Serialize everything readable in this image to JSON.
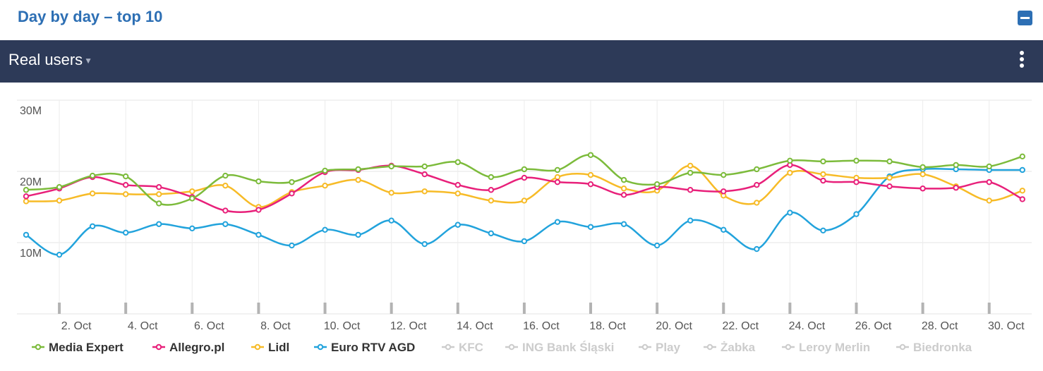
{
  "header": {
    "title": "Day by day – top 10"
  },
  "toolbar": {
    "metric_label": "Real users"
  },
  "chart_data": {
    "type": "line",
    "title": "Day by day – top 10",
    "ylabel": "Real users",
    "ylim": [
      0,
      30000000
    ],
    "ytick_values": [
      10000000,
      20000000,
      30000000
    ],
    "ytick_labels": [
      "10M",
      "20M",
      "30M"
    ],
    "x": [
      1,
      2,
      3,
      4,
      5,
      6,
      7,
      8,
      9,
      10,
      11,
      12,
      13,
      14,
      15,
      16,
      17,
      18,
      19,
      20,
      21,
      22,
      23,
      24,
      25,
      26,
      27,
      28,
      29,
      30,
      31
    ],
    "xtick_days": [
      2,
      4,
      6,
      8,
      10,
      12,
      14,
      16,
      18,
      20,
      22,
      24,
      26,
      28,
      30
    ],
    "xtick_labels": [
      "2. Oct",
      "4. Oct",
      "6. Oct",
      "8. Oct",
      "10. Oct",
      "12. Oct",
      "14. Oct",
      "16. Oct",
      "18. Oct",
      "20. Oct",
      "22. Oct",
      "24. Oct",
      "26. Oct",
      "28. Oct",
      "30. Oct"
    ],
    "series": [
      {
        "name": "Media Expert",
        "color": "#7cbb3b",
        "visible": true,
        "values": [
          17.4,
          17.8,
          19.4,
          19.3,
          15.5,
          16.2,
          19.4,
          18.6,
          18.5,
          20.1,
          20.3,
          20.7,
          20.7,
          21.3,
          19.2,
          20.3,
          20.2,
          22.3,
          18.8,
          18.2,
          19.8,
          19.5,
          20.3,
          21.5,
          21.4,
          21.5,
          21.4,
          20.6,
          20.9,
          20.7,
          22.1
        ]
      },
      {
        "name": "Allegro.pl",
        "color": "#e8207a",
        "visible": true,
        "values": [
          16.5,
          17.6,
          19.2,
          18.1,
          17.8,
          16.4,
          14.5,
          14.6,
          16.9,
          19.9,
          20.2,
          20.8,
          19.6,
          18.1,
          17.4,
          19.1,
          18.5,
          18.2,
          16.7,
          17.8,
          17.4,
          17.2,
          18.1,
          20.9,
          18.7,
          18.5,
          17.9,
          17.6,
          17.7,
          18.5,
          16.1
        ]
      },
      {
        "name": "Lidl",
        "color": "#f7bb27",
        "visible": true,
        "values": [
          15.8,
          15.9,
          16.9,
          16.8,
          16.8,
          17.2,
          18.0,
          15.0,
          17.1,
          18.0,
          18.8,
          17.0,
          17.2,
          16.9,
          15.9,
          15.9,
          19.2,
          19.5,
          17.6,
          17.3,
          20.8,
          16.6,
          15.6,
          19.8,
          19.6,
          19.1,
          19.1,
          19.6,
          17.9,
          15.9,
          17.3
        ]
      },
      {
        "name": "Euro RTV AGD",
        "color": "#22a3dc",
        "visible": true,
        "values": [
          11.1,
          8.3,
          12.3,
          11.4,
          12.6,
          12.0,
          12.6,
          11.1,
          9.6,
          11.8,
          11.1,
          13.1,
          9.8,
          12.5,
          11.3,
          10.2,
          12.9,
          12.2,
          12.6,
          9.6,
          13.1,
          11.8,
          9.1,
          14.2,
          11.7,
          14.0,
          19.3,
          20.3,
          20.3,
          20.2,
          20.2
        ]
      }
    ],
    "legend_position": "bottom",
    "legend": [
      {
        "name": "Media Expert",
        "visible": true,
        "color": "#7cbb3b"
      },
      {
        "name": "Allegro.pl",
        "visible": true,
        "color": "#e8207a"
      },
      {
        "name": "Lidl",
        "visible": true,
        "color": "#f7bb27"
      },
      {
        "name": "Euro RTV AGD",
        "visible": true,
        "color": "#22a3dc"
      },
      {
        "name": "KFC",
        "visible": false,
        "color": "#cccccc"
      },
      {
        "name": "ING Bank Śląski",
        "visible": false,
        "color": "#cccccc"
      },
      {
        "name": "Play",
        "visible": false,
        "color": "#cccccc"
      },
      {
        "name": "Żabka",
        "visible": false,
        "color": "#cccccc"
      },
      {
        "name": "Leroy Merlin",
        "visible": false,
        "color": "#cccccc"
      },
      {
        "name": "Biedronka",
        "visible": false,
        "color": "#cccccc"
      }
    ],
    "grid": true
  }
}
